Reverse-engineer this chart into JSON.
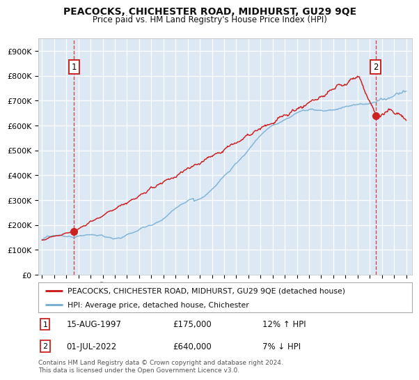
{
  "title": "PEACOCKS, CHICHESTER ROAD, MIDHURST, GU29 9QE",
  "subtitle": "Price paid vs. HM Land Registry's House Price Index (HPI)",
  "bg_color": "#ffffff",
  "plot_bg_color": "#dce9f5",
  "legend_label_red": "PEACOCKS, CHICHESTER ROAD, MIDHURST, GU29 9QE (detached house)",
  "legend_label_blue": "HPI: Average price, detached house, Chichester",
  "annotation1_date": "15-AUG-1997",
  "annotation1_price": "£175,000",
  "annotation1_hpi": "12% ↑ HPI",
  "annotation2_date": "01-JUL-2022",
  "annotation2_price": "£640,000",
  "annotation2_hpi": "7% ↓ HPI",
  "footer": "Contains HM Land Registry data © Crown copyright and database right 2024.\nThis data is licensed under the Open Government Licence v3.0.",
  "ylim": [
    0,
    950000
  ],
  "yticks": [
    0,
    100000,
    200000,
    300000,
    400000,
    500000,
    600000,
    700000,
    800000,
    900000
  ],
  "ytick_labels": [
    "£0",
    "£100K",
    "£200K",
    "£300K",
    "£400K",
    "£500K",
    "£600K",
    "£700K",
    "£800K",
    "£900K"
  ],
  "xtick_years": [
    1995,
    1996,
    1997,
    1998,
    1999,
    2000,
    2001,
    2002,
    2003,
    2004,
    2005,
    2006,
    2007,
    2008,
    2009,
    2010,
    2011,
    2012,
    2013,
    2014,
    2015,
    2016,
    2017,
    2018,
    2019,
    2020,
    2021,
    2022,
    2023,
    2024,
    2025
  ],
  "marker1_x": 1997.62,
  "marker1_y": 175000,
  "marker2_x": 2022.5,
  "marker2_y": 640000,
  "red_color": "#cc2222",
  "blue_color": "#7ab0d4",
  "dashed_color": "#cc2222",
  "xlim_left": 1994.7,
  "xlim_right": 2025.5
}
